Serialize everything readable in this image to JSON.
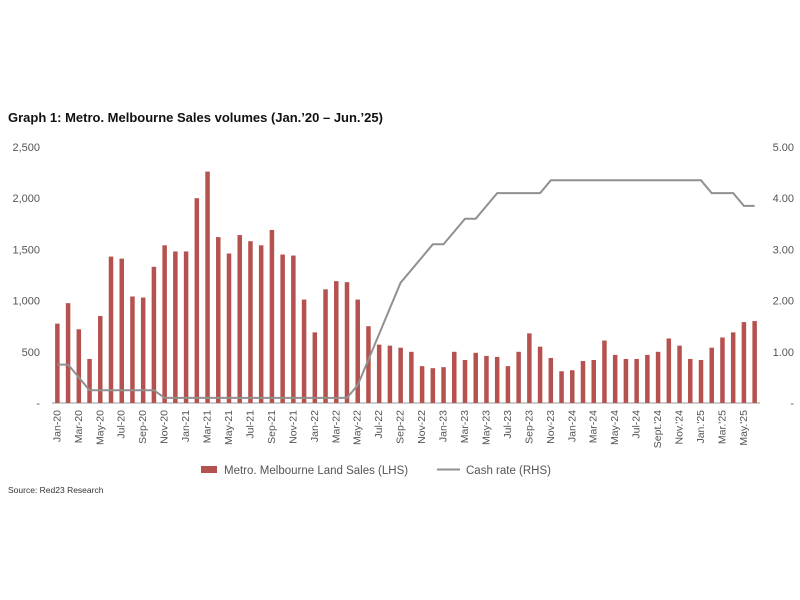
{
  "title": "Graph 1: Metro. Melbourne Sales volumes (Jan.’20 – Jun.’25)",
  "source": "Source: Red23 Research",
  "chart_data": {
    "type": "bar",
    "left_axis": {
      "ticks": [
        "-",
        "500",
        "1,000",
        "1,500",
        "2,000",
        "2,500"
      ],
      "ylim": [
        0,
        2500
      ]
    },
    "right_axis": {
      "ticks": [
        "-",
        "1.00",
        "2.00",
        "3.00",
        "4.00",
        "5.00"
      ],
      "ylim": [
        0,
        5
      ]
    },
    "x_tick_labels": [
      "Jan-20",
      "Mar-20",
      "May-20",
      "Jul-20",
      "Sep-20",
      "Nov-20",
      "Jan-21",
      "Mar-21",
      "May-21",
      "Jul-21",
      "Sep-21",
      "Nov-21",
      "Jan-22",
      "Mar-22",
      "May-22",
      "Jul-22",
      "Sep-22",
      "Nov-22",
      "Jan-23",
      "Mar-23",
      "May-23",
      "Jul-23",
      "Sep-23",
      "Nov-23",
      "Jan-24",
      "Mar-24",
      "May-24",
      "Jul-24",
      "Sept.'24",
      "Nov.'24",
      "Jan.'25",
      "Mar.'25",
      "May.'25"
    ],
    "grid": false,
    "legend_placement": "bottom",
    "series": [
      {
        "name": "Metro. Melbourne Land Sales (LHS)",
        "type": "bar",
        "axis": "left",
        "color": "#b5524f",
        "values": [
          775,
          975,
          720,
          430,
          850,
          1430,
          1410,
          1040,
          1030,
          1330,
          1540,
          1480,
          1480,
          2000,
          2260,
          1620,
          1460,
          1640,
          1580,
          1540,
          1690,
          1450,
          1440,
          1010,
          690,
          1110,
          1190,
          1180,
          1010,
          750,
          570,
          560,
          540,
          500,
          360,
          340,
          350,
          500,
          420,
          490,
          460,
          450,
          360,
          500,
          680,
          550,
          440,
          310,
          320,
          410,
          420,
          610,
          470,
          430,
          430,
          470,
          500,
          630,
          560,
          430,
          420,
          540,
          640,
          690,
          790,
          800
        ]
      },
      {
        "name": "Cash rate (RHS)",
        "type": "line",
        "axis": "right",
        "color": "#909090",
        "values": [
          0.75,
          0.75,
          0.5,
          0.25,
          0.25,
          0.25,
          0.25,
          0.25,
          0.25,
          0.25,
          0.1,
          0.1,
          0.1,
          0.1,
          0.1,
          0.1,
          0.1,
          0.1,
          0.1,
          0.1,
          0.1,
          0.1,
          0.1,
          0.1,
          0.1,
          0.1,
          0.1,
          0.1,
          0.35,
          0.85,
          1.35,
          1.85,
          2.35,
          2.6,
          2.85,
          3.1,
          3.1,
          3.35,
          3.6,
          3.6,
          3.85,
          4.1,
          4.1,
          4.1,
          4.1,
          4.1,
          4.35,
          4.35,
          4.35,
          4.35,
          4.35,
          4.35,
          4.35,
          4.35,
          4.35,
          4.35,
          4.35,
          4.35,
          4.35,
          4.35,
          4.35,
          4.1,
          4.1,
          4.1,
          3.85,
          3.85
        ]
      }
    ]
  }
}
